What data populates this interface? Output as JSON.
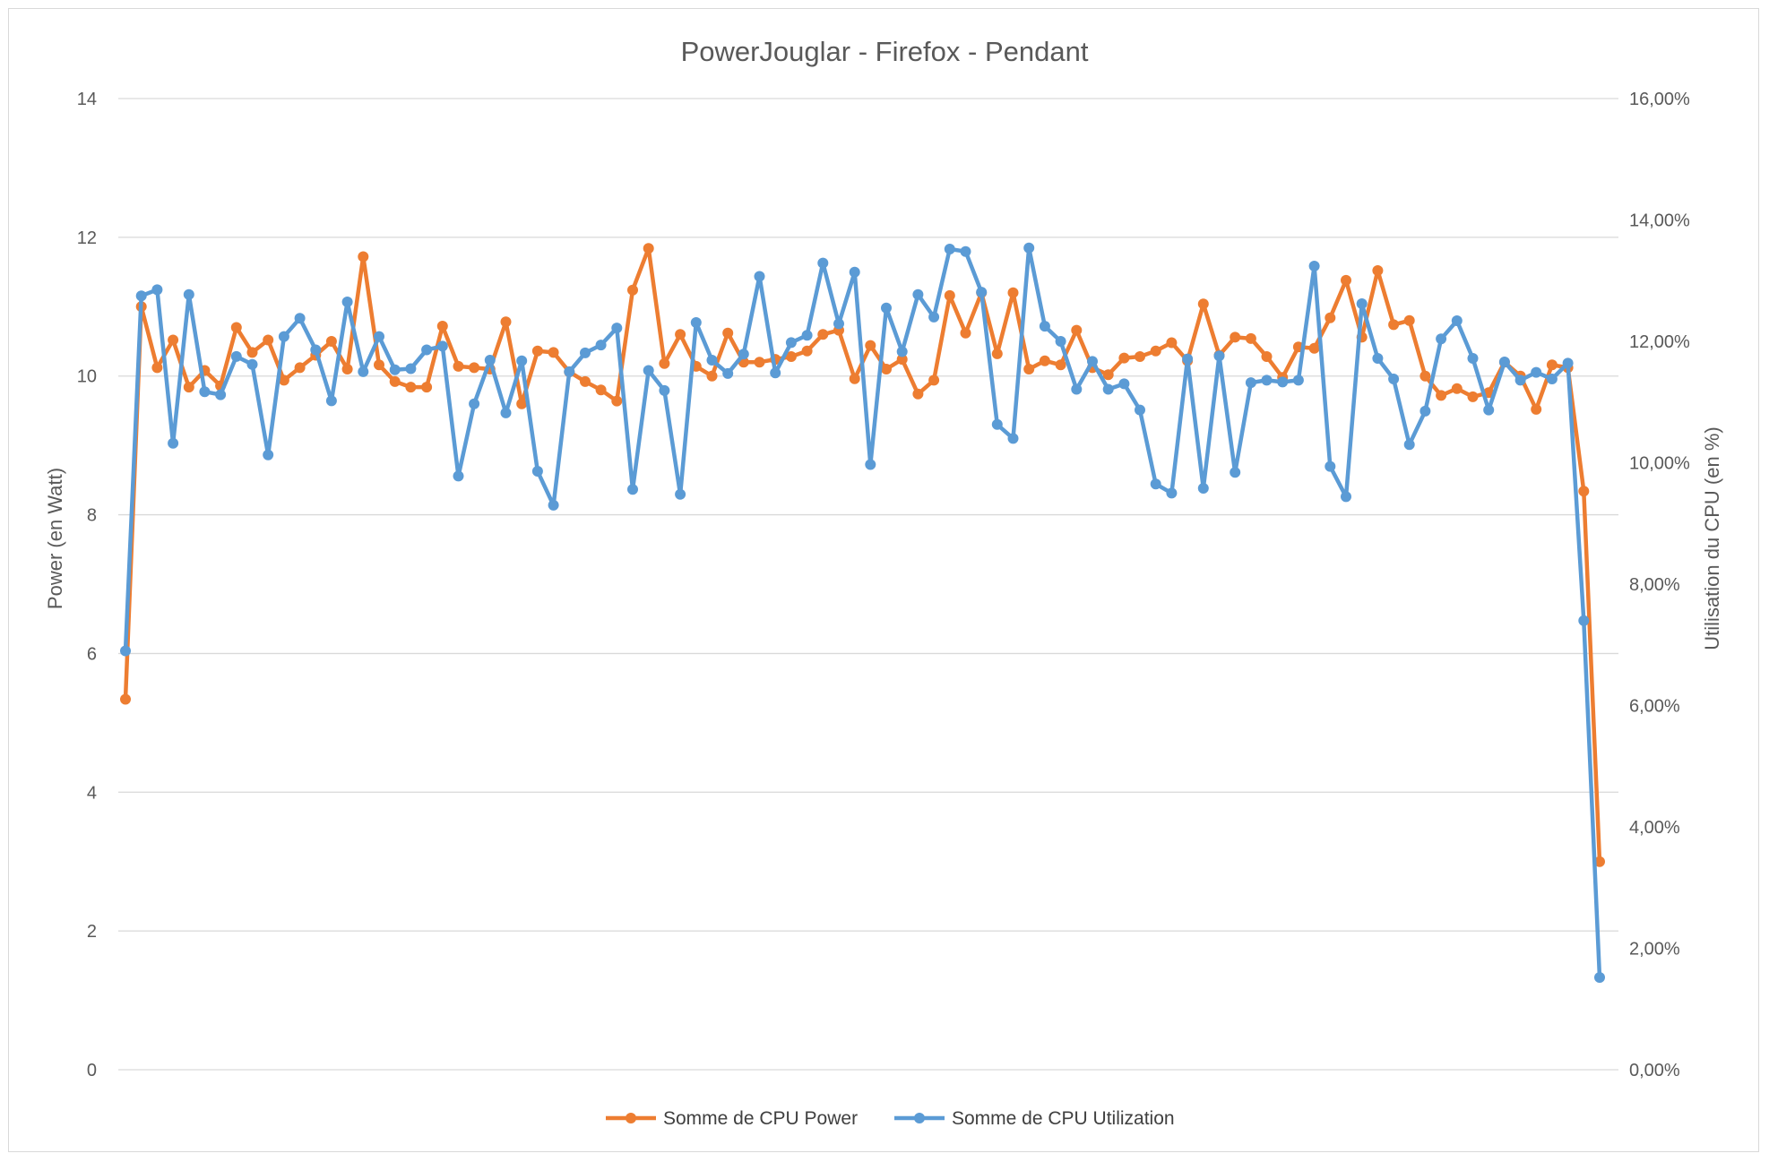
{
  "chart_data": {
    "type": "line",
    "title": "PowerJouglar - Firefox - Pendant",
    "ylabel": "Power (en Watt)",
    "y2label": "Utilisation du CPU (en %)",
    "xlabel": "",
    "ylim": [
      0,
      14
    ],
    "y2lim": [
      0,
      0.16
    ],
    "yticks": [
      "0",
      "2",
      "4",
      "6",
      "8",
      "10",
      "12",
      "14"
    ],
    "y2ticks": [
      "0,00%",
      "2,00%",
      "4,00%",
      "6,00%",
      "8,00%",
      "10,00%",
      "12,00%",
      "14,00%",
      "16,00%"
    ],
    "grid": true,
    "legend_position": "bottom",
    "colors": {
      "power": "#ED7D31",
      "utilization": "#5B9BD5"
    },
    "series": [
      {
        "name": "Somme de CPU Power",
        "axis": "left",
        "values": [
          5.34,
          11.0,
          10.12,
          10.52,
          9.84,
          10.08,
          9.86,
          10.7,
          10.34,
          10.52,
          9.94,
          10.12,
          10.3,
          10.5,
          10.1,
          11.72,
          10.16,
          9.92,
          9.84,
          9.84,
          10.72,
          10.14,
          10.12,
          10.1,
          10.78,
          9.6,
          10.36,
          10.34,
          10.06,
          9.92,
          9.8,
          9.64,
          11.24,
          11.84,
          10.18,
          10.6,
          10.14,
          10.0,
          10.62,
          10.2,
          10.2,
          10.24,
          10.28,
          10.36,
          10.6,
          10.66,
          9.96,
          10.44,
          10.1,
          10.24,
          9.74,
          9.94,
          11.16,
          10.62,
          11.2,
          10.32,
          11.2,
          10.1,
          10.22,
          10.16,
          10.66,
          10.12,
          10.02,
          10.26,
          10.28,
          10.36,
          10.48,
          10.22,
          11.04,
          10.3,
          10.56,
          10.54,
          10.28,
          9.98,
          10.42,
          10.4,
          10.84,
          11.38,
          10.56,
          11.52,
          10.74,
          10.8,
          10.0,
          9.72,
          9.82,
          9.7,
          9.76,
          10.2,
          10.0,
          9.52,
          10.16,
          10.12,
          8.34,
          3.0
        ]
      },
      {
        "name": "Somme de CPU Utilization",
        "axis": "right",
        "values": [
          0.069,
          0.1275,
          0.1285,
          0.1032,
          0.1277,
          0.1117,
          0.1112,
          0.1175,
          0.1162,
          0.1013,
          0.1208,
          0.1238,
          0.1186,
          0.1102,
          0.1265,
          0.115,
          0.1208,
          0.1153,
          0.1155,
          0.1186,
          0.1192,
          0.0978,
          0.1097,
          0.1169,
          0.1082,
          0.1168,
          0.0986,
          0.093,
          0.115,
          0.1181,
          0.1194,
          0.1222,
          0.0956,
          0.1152,
          0.1119,
          0.0948,
          0.1231,
          0.1169,
          0.1147,
          0.1179,
          0.1307,
          0.1148,
          0.1198,
          0.121,
          0.1329,
          0.1229,
          0.1314,
          0.0997,
          0.1255,
          0.1183,
          0.1277,
          0.124,
          0.1352,
          0.1348,
          0.1281,
          0.1063,
          0.104,
          0.1354,
          0.1225,
          0.12,
          0.1121,
          0.1167,
          0.1121,
          0.113,
          0.1087,
          0.0965,
          0.095,
          0.1171,
          0.0958,
          0.1176,
          0.0984,
          0.1132,
          0.1136,
          0.1133,
          0.1136,
          0.1324,
          0.0994,
          0.0944,
          0.1262,
          0.1172,
          0.1138,
          0.103,
          0.1085,
          0.1204,
          0.1234,
          0.1172,
          0.1087,
          0.1166,
          0.1136,
          0.1149,
          0.1138,
          0.1164,
          0.074,
          0.0152
        ]
      }
    ]
  }
}
